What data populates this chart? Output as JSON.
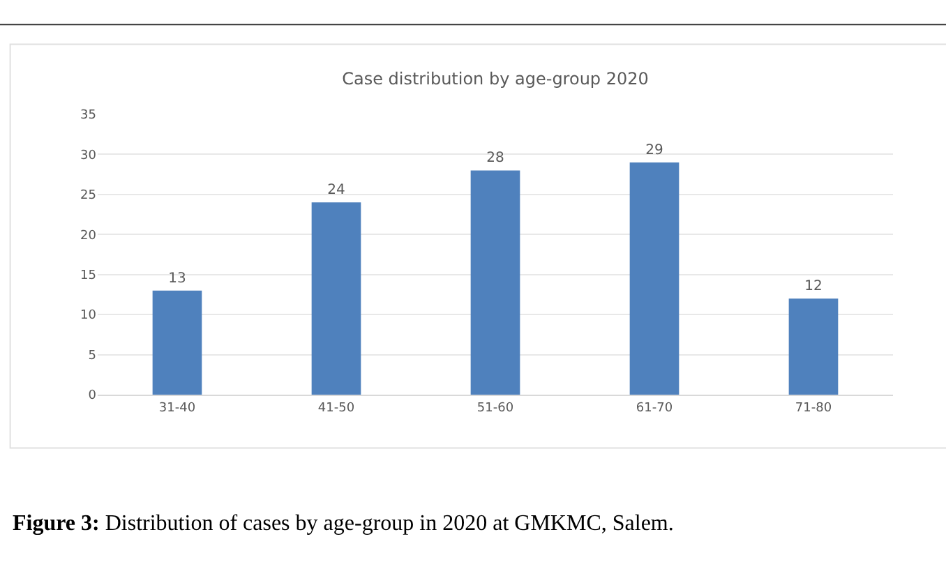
{
  "chart_data": {
    "type": "bar",
    "title": "Case distribution by age-group 2020",
    "categories": [
      "31-40",
      "41-50",
      "51-60",
      "61-70",
      "71-80"
    ],
    "values": [
      13,
      24,
      28,
      29,
      12
    ],
    "color": "#4f81bd",
    "ylim": [
      0,
      35
    ],
    "yticks": [
      0,
      5,
      10,
      15,
      20,
      25,
      30,
      35
    ],
    "grid": "y",
    "data_labels": true,
    "annotations": [
      "Figure 3: Distribution of cases by age-group in 2020 at GMKMC, Salem."
    ]
  }
}
